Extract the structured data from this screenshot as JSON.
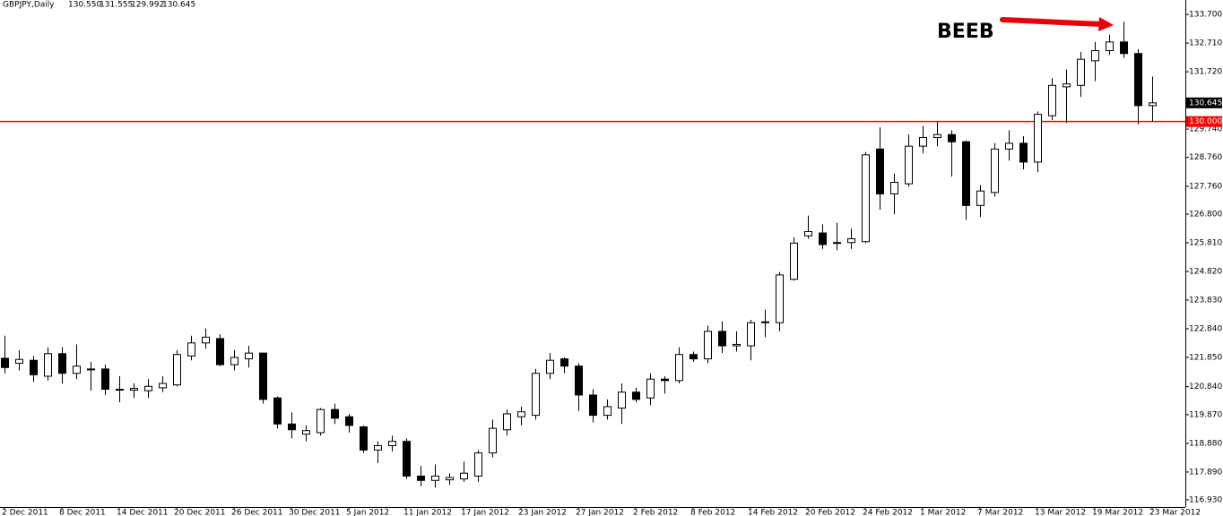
{
  "chart_data": {
    "type": "candlestick",
    "title": "GBPJPY,Daily",
    "header_values": [
      {
        "value": 130.55,
        "label": "130.550"
      },
      {
        "value": 131.555,
        "label": "131.555"
      },
      {
        "value": 129.992,
        "label": "129.992"
      },
      {
        "value": 130.645,
        "label": "130.645"
      }
    ],
    "annotation": "BEEB",
    "categories": [
      "2 Dec 2011",
      null,
      null,
      null,
      "8 Dec 2011",
      null,
      null,
      null,
      "14 Dec 2011",
      null,
      null,
      null,
      "20 Dec 2011",
      null,
      null,
      null,
      "26 Dec 2011",
      null,
      null,
      null,
      "30 Dec 2011",
      null,
      null,
      null,
      "5 Jan 2012",
      null,
      null,
      null,
      "11 Jan 2012",
      null,
      null,
      null,
      "17 Jan 2012",
      null,
      null,
      null,
      "23 Jan 2012",
      null,
      null,
      null,
      "27 Jan 2012",
      null,
      null,
      null,
      "2 Feb 2012",
      null,
      null,
      null,
      "8 Feb 2012",
      null,
      null,
      null,
      "14 Feb 2012",
      null,
      null,
      null,
      "20 Feb 2012",
      null,
      null,
      null,
      "24 Feb 2012",
      null,
      null,
      null,
      "1 Mar 2012",
      null,
      null,
      null,
      "7 Mar 2012",
      null,
      null,
      null,
      "13 Mar 2012",
      null,
      null,
      null,
      "19 Mar 2012",
      null,
      null,
      null,
      "23 Mar 2012"
    ],
    "open": [
      121.82,
      121.65,
      121.75,
      121.2,
      121.98,
      121.3,
      121.42,
      121.45,
      120.75,
      120.72,
      120.7,
      120.8,
      120.9,
      121.9,
      122.35,
      122.5,
      121.6,
      121.8,
      122.0,
      120.45,
      119.55,
      119.2,
      119.25,
      120.05,
      119.8,
      119.45,
      118.65,
      118.8,
      118.95,
      117.75,
      117.6,
      117.62,
      117.65,
      117.75,
      118.55,
      119.35,
      119.8,
      119.85,
      121.3,
      121.8,
      121.55,
      120.55,
      119.85,
      120.1,
      120.65,
      120.45,
      121.1,
      121.05,
      121.95,
      121.8,
      122.75,
      122.25,
      122.25,
      123.05,
      123.05,
      124.55,
      126.05,
      126.15,
      125.8,
      125.82,
      125.85,
      129.05,
      127.5,
      127.85,
      129.15,
      129.45,
      129.55,
      129.3,
      127.1,
      127.55,
      129.05,
      129.25,
      128.6,
      130.2,
      131.2,
      131.25,
      132.1,
      132.45,
      132.75,
      132.35,
      130.55
    ],
    "high": [
      122.6,
      122.1,
      121.9,
      122.2,
      122.2,
      122.3,
      121.7,
      121.6,
      121.2,
      120.95,
      121.1,
      121.2,
      122.1,
      122.6,
      122.85,
      122.65,
      122.1,
      122.25,
      122.0,
      120.5,
      119.95,
      119.5,
      120.1,
      120.25,
      119.9,
      119.5,
      118.95,
      119.15,
      119.05,
      118.1,
      118.15,
      117.85,
      118.25,
      118.65,
      119.7,
      120.05,
      120.15,
      121.45,
      122.0,
      121.85,
      121.65,
      120.75,
      120.4,
      120.95,
      120.8,
      121.3,
      121.2,
      122.2,
      122.05,
      122.95,
      123.1,
      122.75,
      123.15,
      123.5,
      124.8,
      126.0,
      126.75,
      126.45,
      126.5,
      126.3,
      128.95,
      129.8,
      128.2,
      129.55,
      129.85,
      130.0,
      129.7,
      129.35,
      127.8,
      129.25,
      129.7,
      129.5,
      130.35,
      131.5,
      131.8,
      132.4,
      132.75,
      133.0,
      133.45,
      132.5,
      131.555
    ],
    "low": [
      121.3,
      121.4,
      121.0,
      121.05,
      120.95,
      121.1,
      120.7,
      120.55,
      120.3,
      120.45,
      120.45,
      120.65,
      120.85,
      121.75,
      122.15,
      121.55,
      121.4,
      121.5,
      120.25,
      119.4,
      119.05,
      118.95,
      119.15,
      119.55,
      119.25,
      118.55,
      118.2,
      118.6,
      117.65,
      117.4,
      117.35,
      117.45,
      117.55,
      117.55,
      118.4,
      119.15,
      119.5,
      119.7,
      121.1,
      121.3,
      120.0,
      119.6,
      119.7,
      119.55,
      120.3,
      120.2,
      120.6,
      120.95,
      121.7,
      121.65,
      122.0,
      122.05,
      121.75,
      122.55,
      122.75,
      124.5,
      125.95,
      125.6,
      125.55,
      125.6,
      125.8,
      126.95,
      126.8,
      127.75,
      128.9,
      129.15,
      128.1,
      126.6,
      126.7,
      127.4,
      128.65,
      128.35,
      128.25,
      130.05,
      129.95,
      130.85,
      131.4,
      132.3,
      132.2,
      129.9,
      129.992
    ],
    "close": [
      121.5,
      121.78,
      121.25,
      121.98,
      121.3,
      121.55,
      121.45,
      120.75,
      120.72,
      120.78,
      120.85,
      120.95,
      121.95,
      122.35,
      122.55,
      121.6,
      121.85,
      122.0,
      120.4,
      119.55,
      119.35,
      119.32,
      120.05,
      119.75,
      119.5,
      118.65,
      118.8,
      118.95,
      117.75,
      117.6,
      117.75,
      117.7,
      117.85,
      118.55,
      119.4,
      119.9,
      119.97,
      121.3,
      121.75,
      121.55,
      120.55,
      119.85,
      120.15,
      120.65,
      120.4,
      121.1,
      121.05,
      121.95,
      121.8,
      122.75,
      122.25,
      122.3,
      123.05,
      123.08,
      124.7,
      125.8,
      126.2,
      125.75,
      125.82,
      125.95,
      128.85,
      127.5,
      127.9,
      129.15,
      129.45,
      129.55,
      129.3,
      127.1,
      127.6,
      129.05,
      129.25,
      128.6,
      130.25,
      131.25,
      131.3,
      132.15,
      132.45,
      132.75,
      132.35,
      130.55,
      130.645
    ],
    "up_color": "#ffffff",
    "down_color": "#000000",
    "ylim": [
      116.68,
      134.2
    ],
    "yticks": [
      {
        "value": 133.7,
        "label": "133.700"
      },
      {
        "value": 132.71,
        "label": "132.710"
      },
      {
        "value": 131.72,
        "label": "131.720"
      },
      {
        "value": 129.74,
        "label": "129.740"
      },
      {
        "value": 128.76,
        "label": "128.760"
      },
      {
        "value": 127.76,
        "label": "127.760"
      },
      {
        "value": 126.8,
        "label": "126.800"
      },
      {
        "value": 125.81,
        "label": "125.810"
      },
      {
        "value": 124.82,
        "label": "124.820"
      },
      {
        "value": 123.83,
        "label": "123.830"
      },
      {
        "value": 122.84,
        "label": "122.840"
      },
      {
        "value": 121.85,
        "label": "121.850"
      },
      {
        "value": 120.84,
        "label": "120.840"
      },
      {
        "value": 119.87,
        "label": "119.870"
      },
      {
        "value": 118.88,
        "label": "118.880"
      },
      {
        "value": 117.89,
        "label": "117.890"
      },
      {
        "value": 116.93,
        "label": "116.930"
      }
    ],
    "price_line": {
      "value": 130,
      "label": "130.000",
      "color": "#ff0000"
    },
    "last_price": {
      "value": 130.645,
      "label": "130.645"
    },
    "grid": false
  }
}
